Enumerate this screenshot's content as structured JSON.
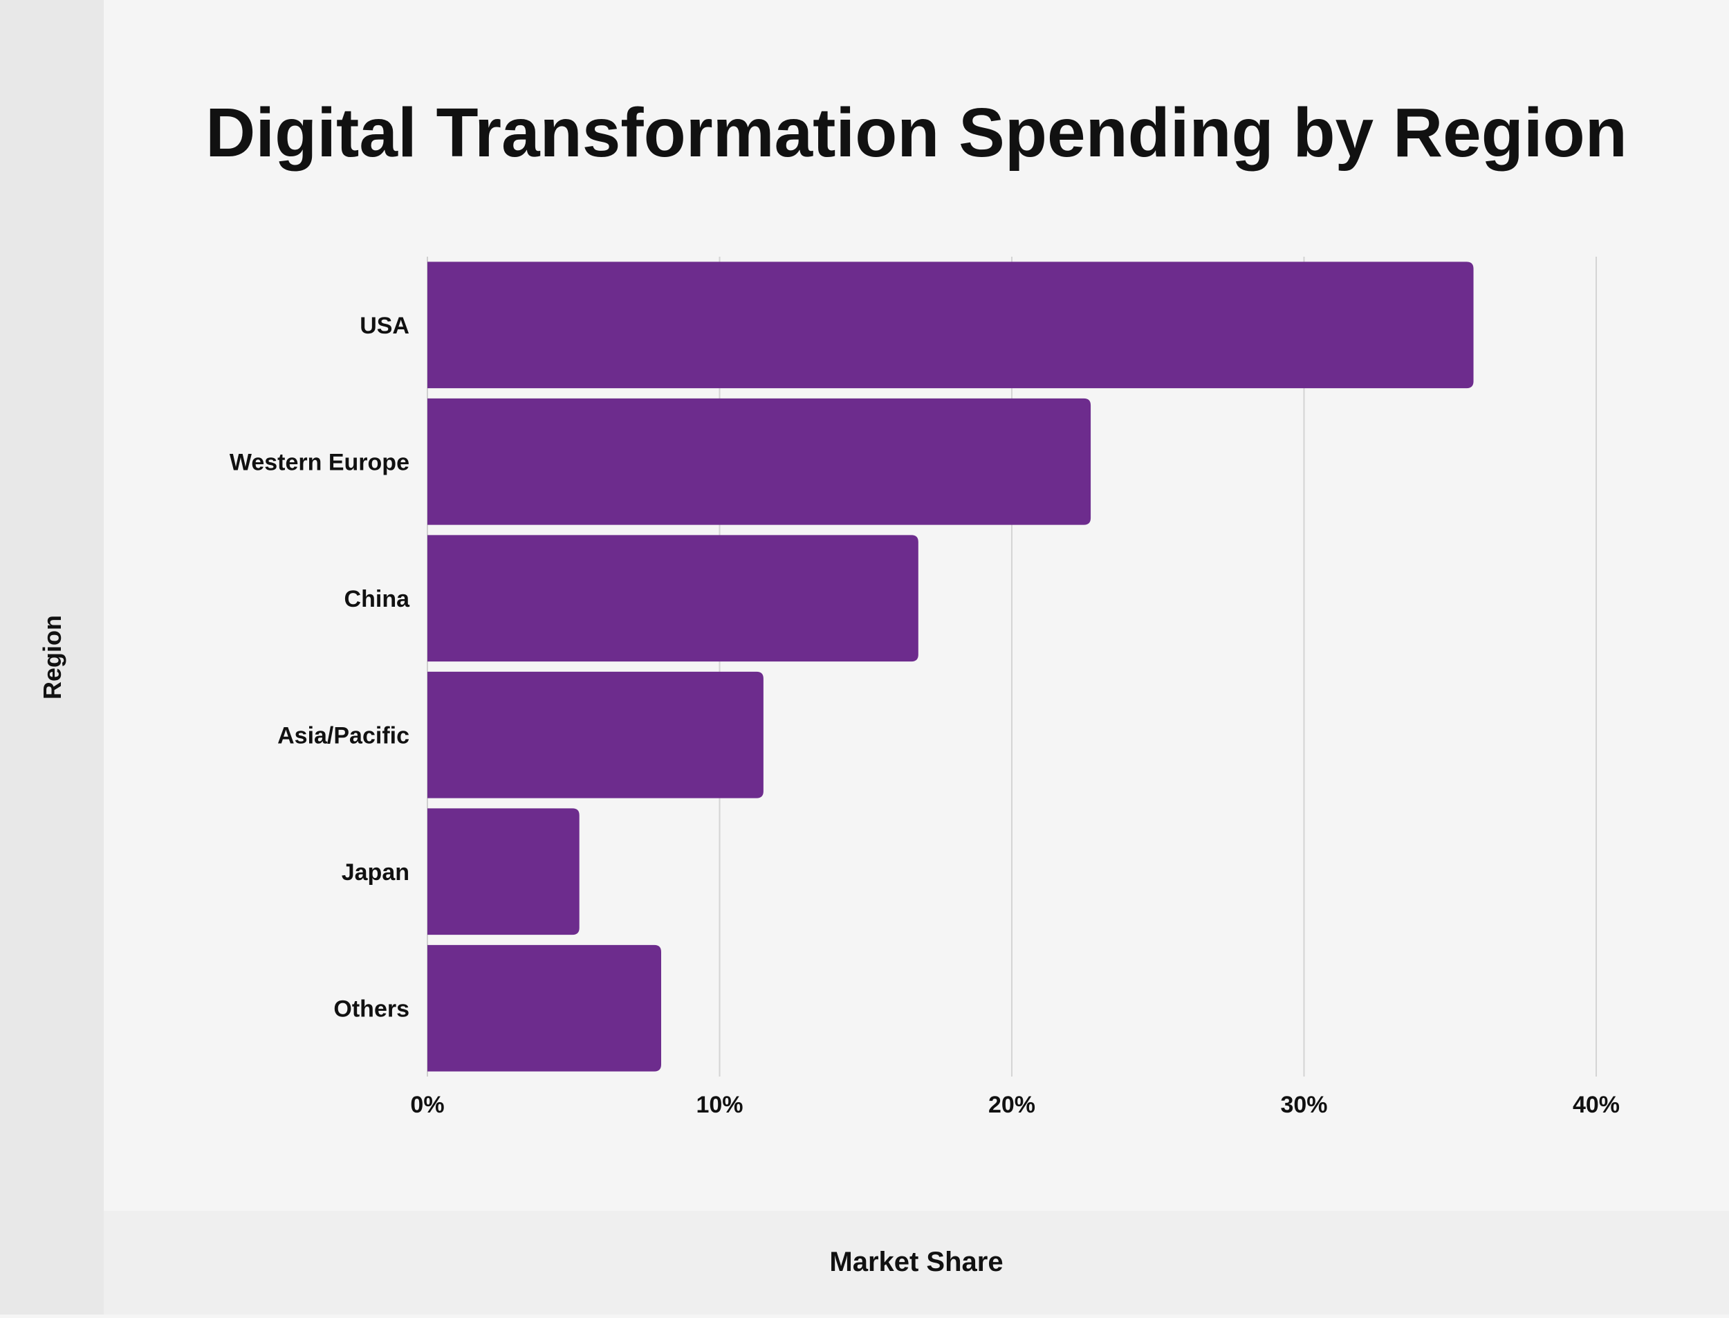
{
  "chart_data": {
    "type": "bar",
    "orientation": "horizontal",
    "title": "Digital Transformation Spending by Region",
    "xlabel": "Market Share",
    "ylabel": "Region",
    "categories": [
      "USA",
      "Western Europe",
      "China",
      "Asia/Pacific",
      "Japan",
      "Others"
    ],
    "values": [
      35.8,
      22.7,
      16.8,
      11.5,
      5.2,
      8.0
    ],
    "xlim": [
      0,
      40
    ],
    "xticks": [
      0,
      10,
      20,
      30,
      40
    ],
    "xtick_labels": [
      "0%",
      "10%",
      "20%",
      "30%",
      "40%"
    ],
    "grid": true,
    "legend": "none",
    "bar_color": "#6d2c8d"
  }
}
